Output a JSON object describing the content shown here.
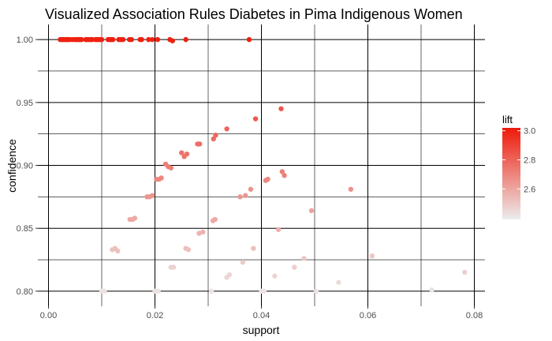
{
  "chart_data": {
    "type": "scatter",
    "title": "Visualized Association Rules Diabetes in Pima Indigenous Women",
    "xlabel": "support",
    "ylabel": "confidence",
    "xlim": [
      -0.002,
      0.082
    ],
    "ylim": [
      0.788,
      1.012
    ],
    "x_ticks": [
      0.0,
      0.02,
      0.04,
      0.06,
      0.08
    ],
    "x_tick_labels": [
      "0.00",
      "0.02",
      "0.04",
      "0.06",
      "0.08"
    ],
    "y_ticks": [
      0.8,
      0.85,
      0.9,
      0.95,
      1.0
    ],
    "y_tick_labels": [
      "0.80",
      "0.85",
      "0.90",
      "0.95",
      "1.00"
    ],
    "grid": true,
    "color_scale": {
      "variable": "lift",
      "min": 2.39,
      "max": 3.02,
      "low_color": "#ececec",
      "high_color": "#ee1a0a",
      "ticks": [
        2.6,
        2.8,
        3.0
      ],
      "tick_labels": [
        "2.6",
        "2.8",
        "3.0"
      ]
    },
    "legend_position": "right",
    "points": [
      {
        "x": 0.0022,
        "y": 1.0,
        "lift": 3.0
      },
      {
        "x": 0.0025,
        "y": 1.0,
        "lift": 3.0
      },
      {
        "x": 0.0028,
        "y": 1.0,
        "lift": 3.0
      },
      {
        "x": 0.0031,
        "y": 1.0,
        "lift": 3.0
      },
      {
        "x": 0.0034,
        "y": 1.0,
        "lift": 3.0
      },
      {
        "x": 0.0037,
        "y": 1.0,
        "lift": 3.0
      },
      {
        "x": 0.004,
        "y": 1.0,
        "lift": 3.0
      },
      {
        "x": 0.0045,
        "y": 1.0,
        "lift": 3.0
      },
      {
        "x": 0.005,
        "y": 1.0,
        "lift": 3.0
      },
      {
        "x": 0.0053,
        "y": 1.0,
        "lift": 3.0
      },
      {
        "x": 0.0056,
        "y": 1.0,
        "lift": 3.0
      },
      {
        "x": 0.0059,
        "y": 1.0,
        "lift": 3.0
      },
      {
        "x": 0.0062,
        "y": 1.0,
        "lift": 3.0
      },
      {
        "x": 0.007,
        "y": 1.0,
        "lift": 3.0
      },
      {
        "x": 0.0073,
        "y": 1.0,
        "lift": 3.0
      },
      {
        "x": 0.0076,
        "y": 1.0,
        "lift": 3.0
      },
      {
        "x": 0.0079,
        "y": 1.0,
        "lift": 3.0
      },
      {
        "x": 0.0082,
        "y": 1.0,
        "lift": 3.0
      },
      {
        "x": 0.0088,
        "y": 1.0,
        "lift": 3.0
      },
      {
        "x": 0.0091,
        "y": 1.0,
        "lift": 3.0
      },
      {
        "x": 0.0094,
        "y": 1.0,
        "lift": 3.0
      },
      {
        "x": 0.0097,
        "y": 1.0,
        "lift": 3.0
      },
      {
        "x": 0.01,
        "y": 1.0,
        "lift": 3.0
      },
      {
        "x": 0.0112,
        "y": 1.0,
        "lift": 3.0
      },
      {
        "x": 0.0115,
        "y": 1.0,
        "lift": 3.0
      },
      {
        "x": 0.0118,
        "y": 1.0,
        "lift": 3.0
      },
      {
        "x": 0.0121,
        "y": 1.0,
        "lift": 3.0
      },
      {
        "x": 0.0132,
        "y": 1.0,
        "lift": 3.0
      },
      {
        "x": 0.0136,
        "y": 1.0,
        "lift": 3.0
      },
      {
        "x": 0.014,
        "y": 1.0,
        "lift": 3.0
      },
      {
        "x": 0.0152,
        "y": 1.0,
        "lift": 3.0
      },
      {
        "x": 0.0156,
        "y": 1.0,
        "lift": 3.0
      },
      {
        "x": 0.0172,
        "y": 1.0,
        "lift": 3.0
      },
      {
        "x": 0.0175,
        "y": 1.0,
        "lift": 3.0
      },
      {
        "x": 0.0188,
        "y": 1.0,
        "lift": 3.0
      },
      {
        "x": 0.0195,
        "y": 1.0,
        "lift": 3.0
      },
      {
        "x": 0.0205,
        "y": 1.0,
        "lift": 3.0
      },
      {
        "x": 0.0228,
        "y": 1.0,
        "lift": 3.0
      },
      {
        "x": 0.0233,
        "y": 0.999,
        "lift": 3.0
      },
      {
        "x": 0.0258,
        "y": 1.0,
        "lift": 3.0
      },
      {
        "x": 0.0377,
        "y": 1.0,
        "lift": 3.0
      },
      {
        "x": 0.0437,
        "y": 0.945,
        "lift": 2.84
      },
      {
        "x": 0.0389,
        "y": 0.937,
        "lift": 2.83
      },
      {
        "x": 0.0335,
        "y": 0.929,
        "lift": 2.8
      },
      {
        "x": 0.0314,
        "y": 0.924,
        "lift": 2.79
      },
      {
        "x": 0.031,
        "y": 0.921,
        "lift": 2.78
      },
      {
        "x": 0.028,
        "y": 0.917,
        "lift": 2.77
      },
      {
        "x": 0.0284,
        "y": 0.917,
        "lift": 2.77
      },
      {
        "x": 0.025,
        "y": 0.91,
        "lift": 2.75
      },
      {
        "x": 0.0255,
        "y": 0.907,
        "lift": 2.75
      },
      {
        "x": 0.026,
        "y": 0.909,
        "lift": 2.75
      },
      {
        "x": 0.022,
        "y": 0.901,
        "lift": 2.72
      },
      {
        "x": 0.0225,
        "y": 0.899,
        "lift": 2.72
      },
      {
        "x": 0.023,
        "y": 0.898,
        "lift": 2.72
      },
      {
        "x": 0.0203,
        "y": 0.889,
        "lift": 2.69
      },
      {
        "x": 0.0208,
        "y": 0.889,
        "lift": 2.69
      },
      {
        "x": 0.0212,
        "y": 0.89,
        "lift": 2.69
      },
      {
        "x": 0.0185,
        "y": 0.875,
        "lift": 2.65
      },
      {
        "x": 0.019,
        "y": 0.875,
        "lift": 2.65
      },
      {
        "x": 0.0195,
        "y": 0.876,
        "lift": 2.65
      },
      {
        "x": 0.0153,
        "y": 0.857,
        "lift": 2.59
      },
      {
        "x": 0.0158,
        "y": 0.857,
        "lift": 2.59
      },
      {
        "x": 0.0162,
        "y": 0.858,
        "lift": 2.59
      },
      {
        "x": 0.012,
        "y": 0.833,
        "lift": 2.52
      },
      {
        "x": 0.0125,
        "y": 0.834,
        "lift": 2.52
      },
      {
        "x": 0.013,
        "y": 0.832,
        "lift": 2.52
      },
      {
        "x": 0.01,
        "y": 0.8,
        "lift": 2.42
      },
      {
        "x": 0.0105,
        "y": 0.8,
        "lift": 2.42
      },
      {
        "x": 0.02,
        "y": 0.8,
        "lift": 2.42
      },
      {
        "x": 0.0206,
        "y": 0.8,
        "lift": 2.42
      },
      {
        "x": 0.0306,
        "y": 0.8,
        "lift": 2.42
      },
      {
        "x": 0.0405,
        "y": 0.8,
        "lift": 2.42
      },
      {
        "x": 0.04,
        "y": 0.8,
        "lift": 2.42
      },
      {
        "x": 0.0503,
        "y": 0.8,
        "lift": 2.42
      },
      {
        "x": 0.072,
        "y": 0.801,
        "lift": 2.42
      },
      {
        "x": 0.023,
        "y": 0.819,
        "lift": 2.47
      },
      {
        "x": 0.0235,
        "y": 0.819,
        "lift": 2.47
      },
      {
        "x": 0.029,
        "y": 0.847,
        "lift": 2.56
      },
      {
        "x": 0.0283,
        "y": 0.846,
        "lift": 2.56
      },
      {
        "x": 0.0313,
        "y": 0.857,
        "lift": 2.59
      },
      {
        "x": 0.0309,
        "y": 0.856,
        "lift": 2.59
      },
      {
        "x": 0.0258,
        "y": 0.834,
        "lift": 2.52
      },
      {
        "x": 0.0263,
        "y": 0.833,
        "lift": 2.52
      },
      {
        "x": 0.036,
        "y": 0.875,
        "lift": 2.65
      },
      {
        "x": 0.037,
        "y": 0.876,
        "lift": 2.65
      },
      {
        "x": 0.038,
        "y": 0.881,
        "lift": 2.66
      },
      {
        "x": 0.0412,
        "y": 0.889,
        "lift": 2.69
      },
      {
        "x": 0.0408,
        "y": 0.888,
        "lift": 2.69
      },
      {
        "x": 0.0439,
        "y": 0.895,
        "lift": 2.71
      },
      {
        "x": 0.0443,
        "y": 0.892,
        "lift": 2.71
      },
      {
        "x": 0.0432,
        "y": 0.849,
        "lift": 2.57
      },
      {
        "x": 0.0494,
        "y": 0.864,
        "lift": 2.61
      },
      {
        "x": 0.0568,
        "y": 0.881,
        "lift": 2.66
      },
      {
        "x": 0.0365,
        "y": 0.823,
        "lift": 2.49
      },
      {
        "x": 0.034,
        "y": 0.813,
        "lift": 2.46
      },
      {
        "x": 0.0335,
        "y": 0.811,
        "lift": 2.46
      },
      {
        "x": 0.0385,
        "y": 0.834,
        "lift": 2.52
      },
      {
        "x": 0.0425,
        "y": 0.812,
        "lift": 2.46
      },
      {
        "x": 0.0462,
        "y": 0.819,
        "lift": 2.48
      },
      {
        "x": 0.048,
        "y": 0.826,
        "lift": 2.5
      },
      {
        "x": 0.0545,
        "y": 0.807,
        "lift": 2.44
      },
      {
        "x": 0.0608,
        "y": 0.828,
        "lift": 2.5
      },
      {
        "x": 0.0782,
        "y": 0.815,
        "lift": 2.47
      }
    ]
  }
}
